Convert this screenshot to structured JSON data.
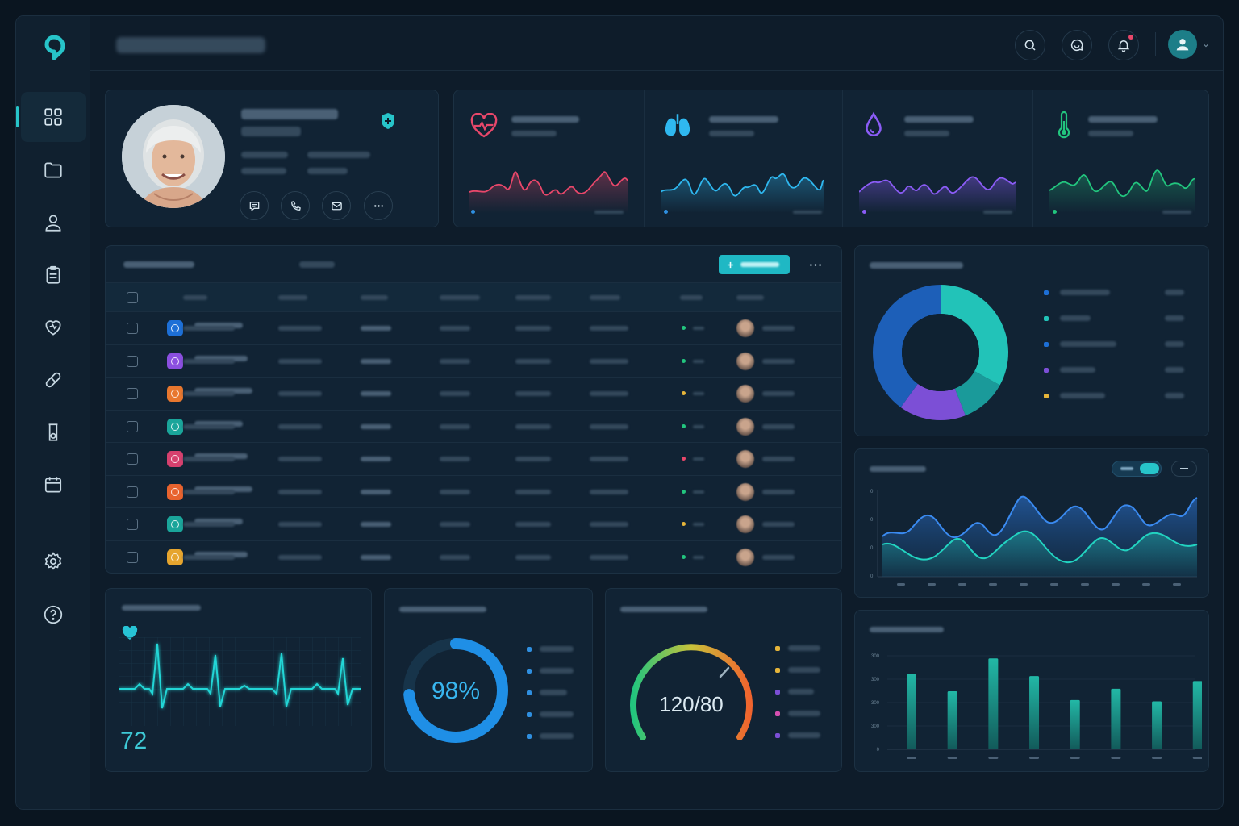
{
  "colors": {
    "accent": "#27c4c9",
    "heart": "#e8476a",
    "lungs": "#2fb8f0",
    "drop": "#8b5cf6",
    "temp": "#22c57e",
    "donut": [
      "#1d5fb8",
      "#22c3b8",
      "#1a9a9a",
      "#7c4fd6",
      "#e6b53a"
    ]
  },
  "sidebar": {
    "items": [
      {
        "name": "dashboard-icon",
        "active": true
      },
      {
        "name": "folder-icon"
      },
      {
        "name": "user-icon"
      },
      {
        "name": "clipboard-icon"
      },
      {
        "name": "heart-icon"
      },
      {
        "name": "pill-icon"
      },
      {
        "name": "lab-flask-icon"
      },
      {
        "name": "calendar-icon"
      },
      {
        "name": "settings-icon"
      },
      {
        "name": "help-icon"
      }
    ]
  },
  "topbar": {
    "icons": [
      "search-icon",
      "chat-icon",
      "bell-icon",
      "avatar"
    ]
  },
  "vitals": [
    {
      "icon": "heart-pulse-icon"
    },
    {
      "icon": "lungs-icon"
    },
    {
      "icon": "drop-icon"
    },
    {
      "icon": "thermometer-icon"
    }
  ],
  "table": {
    "status_colors": [
      "#22c57e",
      "#22c57e",
      "#e6b53a",
      "#22c57e",
      "#e8476a",
      "#22c57e",
      "#e6b53a",
      "#22c57e"
    ],
    "row_icon_colors": [
      "#1d6fd6",
      "#8b4fe0",
      "#e8772e",
      "#1aa59a",
      "#d6406e",
      "#e8632e",
      "#1aa59a",
      "#e6a52e"
    ]
  },
  "heart_rate": {
    "value": "72"
  },
  "oxygen": {
    "value": "98%",
    "fraction": 0.98
  },
  "blood_pressure": {
    "value": "120/80"
  },
  "area_chart": {
    "ytick_labels": [
      "0",
      "0",
      "0",
      "0"
    ]
  },
  "chart_data": {
    "type": "bar",
    "categories": [
      "",
      "",
      "",
      "",
      "",
      "",
      "",
      ""
    ],
    "values": [
      300,
      230,
      360,
      290,
      195,
      240,
      190,
      270
    ],
    "ylim": [
      0,
      400
    ],
    "ytick_labels": [
      "0",
      "300",
      "300",
      "300",
      "300"
    ]
  }
}
